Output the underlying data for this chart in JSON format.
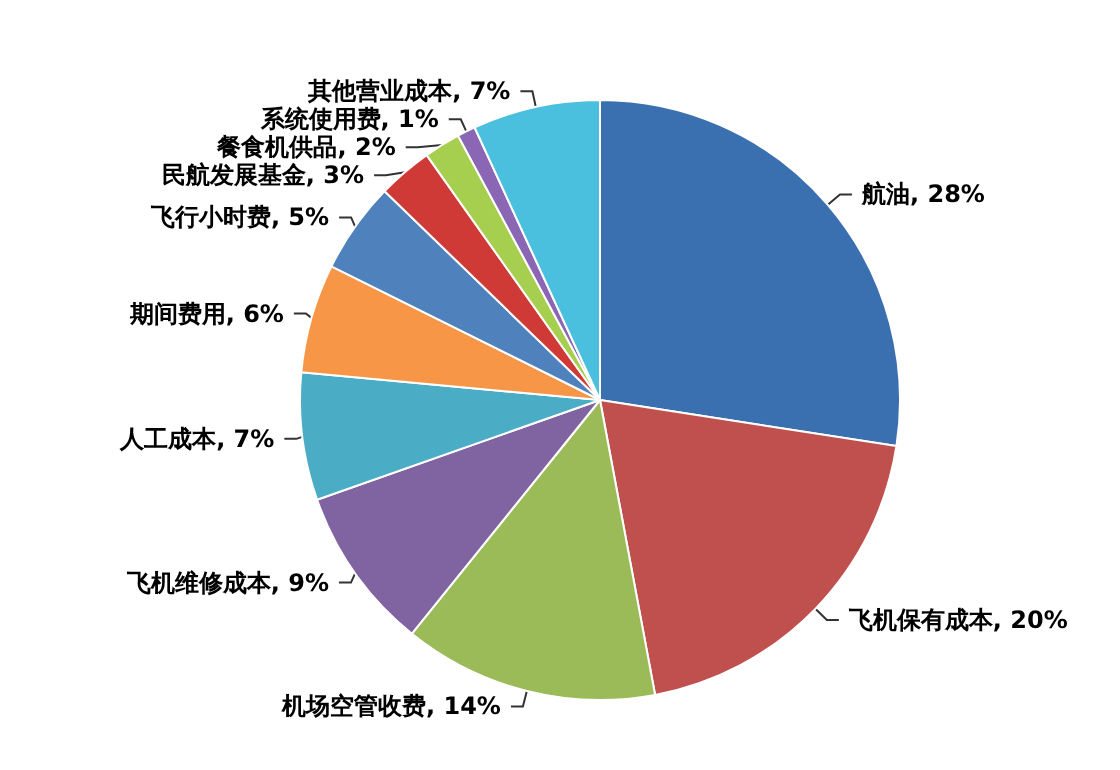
{
  "chart_data": {
    "type": "pie",
    "categories": [
      "航油",
      "飞机保有成本",
      "机场空管收费",
      "飞机维修成本",
      "人工成本",
      "期间费用",
      "飞行小时费",
      "民航发展基金",
      "餐食机供品",
      "系统使用费",
      "其他营业成本"
    ],
    "values": [
      28,
      20,
      14,
      9,
      7,
      6,
      5,
      3,
      2,
      1,
      7
    ],
    "value_labels": [
      "28%",
      "20%",
      "14%",
      "9%",
      "7%",
      "6%",
      "5%",
      "3%",
      "2%",
      "1%",
      "7%"
    ],
    "colors": [
      "#3a6fb0",
      "#c0504d",
      "#9bbb59",
      "#8064a2",
      "#4bacc6",
      "#f79646",
      "#4f81bd",
      "#d03a36",
      "#a6cf4f",
      "#8a66b5",
      "#4bc0de"
    ],
    "legend": false
  }
}
